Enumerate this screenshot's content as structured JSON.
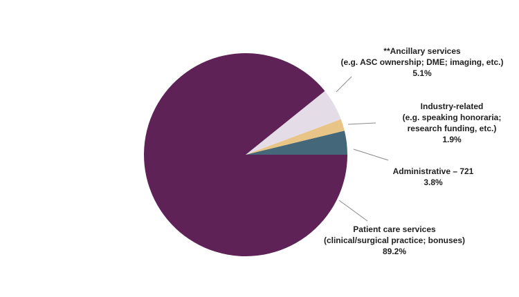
{
  "chart_data": {
    "type": "pie",
    "title": "",
    "start_angle_deg": 0,
    "direction": "counterclockwise",
    "slices": [
      {
        "label_lines": [
          "Administrative – 721"
        ],
        "value_label": "3.8%",
        "value": 3.8,
        "color": "#44687a"
      },
      {
        "label_lines": [
          "Industry-related",
          "(e.g. speaking honoraria;",
          "research funding, etc.)"
        ],
        "value_label": "1.9%",
        "value": 1.9,
        "color": "#e8c486"
      },
      {
        "label_lines": [
          "**Ancillary services",
          "(e.g. ASC ownership; DME; imaging, etc.)"
        ],
        "value_label": "5.1%",
        "value": 5.1,
        "color": "#e4dde7"
      },
      {
        "label_lines": [
          "Patient care services",
          "(clinical/surgical practice; bonuses)"
        ],
        "value_label": "89.2%",
        "value": 89.2,
        "color": "#5e2257"
      }
    ],
    "leader_line_color": "#8a8a8a"
  }
}
